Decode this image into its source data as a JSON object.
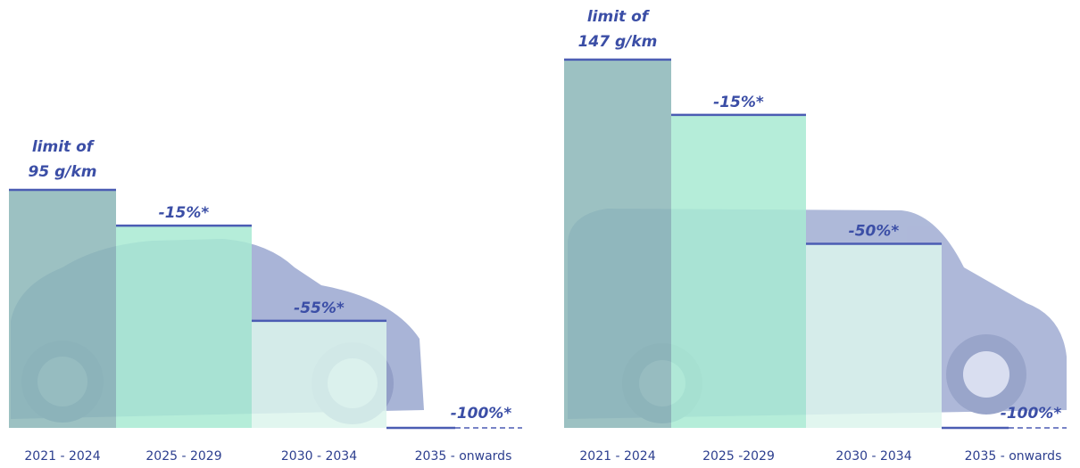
{
  "chart_data": [
    {
      "type": "step-bar",
      "limit_label": [
        "limit of",
        "95 g/km"
      ],
      "limit": 95,
      "categories": [
        "2021 - 2024",
        "2025 - 2029",
        "2030 - 2034",
        "2035 - onwards"
      ],
      "values": [
        0,
        -15,
        -55,
        -100
      ],
      "value_labels": [
        null,
        "-15%*",
        "-55%*",
        "-100%*"
      ],
      "colors": [
        "#8bb6b7",
        "#a8ead2",
        "#dcf5ec",
        "#ffffff"
      ],
      "line_color": "#4b5cb3"
    },
    {
      "type": "step-bar",
      "limit_label": [
        "limit of",
        "147 g/km"
      ],
      "limit": 147,
      "categories": [
        "2021 - 2024",
        "2025 -2029",
        "2030 - 2034",
        "2035 - onwards"
      ],
      "values": [
        0,
        -15,
        -50,
        -100
      ],
      "value_labels": [
        null,
        "-15%*",
        "-50%*",
        "-100%*"
      ],
      "colors": [
        "#8bb6b7",
        "#a8ead2",
        "#dcf5ec",
        "#ffffff"
      ],
      "line_color": "#4b5cb3"
    }
  ]
}
